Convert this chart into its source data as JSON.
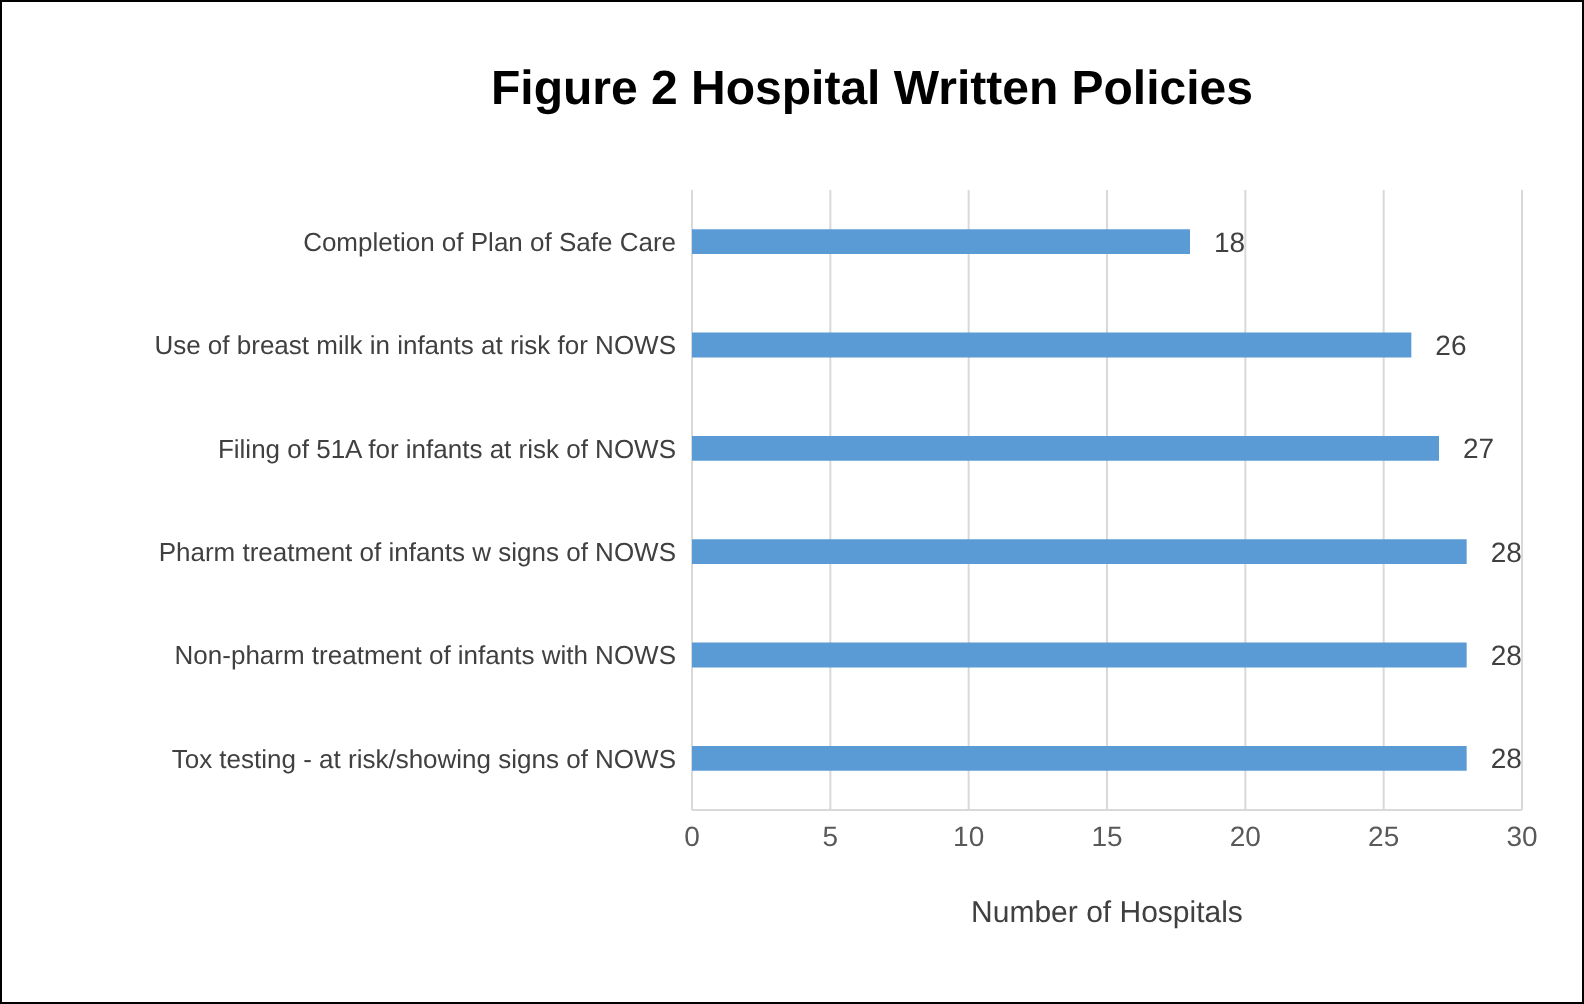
{
  "chart_data": {
    "type": "bar",
    "orientation": "horizontal",
    "title": "Figure 2 Hospital Written Policies",
    "xlabel": "Number of Hospitals",
    "categories": [
      "Completion of Plan of Safe Care",
      "Use of breast milk in infants at risk for NOWS",
      "Filing of 51A for infants at risk of NOWS",
      "Pharm treatment of infants w signs of NOWS",
      "Non-pharm treatment of infants with NOWS",
      "Tox testing - at risk/showing signs of NOWS"
    ],
    "values": [
      18,
      26,
      27,
      28,
      28,
      28
    ],
    "color": "#5b9bd5",
    "xlim": [
      0,
      30
    ],
    "xticks": [
      0,
      5,
      10,
      15,
      20,
      25,
      30
    ],
    "grid": "x",
    "data_labels": true
  }
}
